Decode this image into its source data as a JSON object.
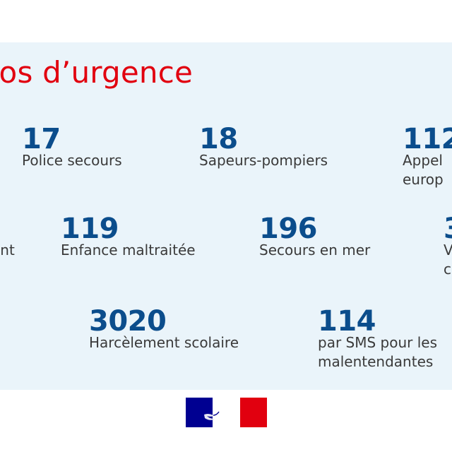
{
  "title": "ros d’urgence",
  "entries": [
    {
      "number": "17",
      "label": "Police secours"
    },
    {
      "number": "18",
      "label": "Sapeurs-pompiers"
    },
    {
      "number": "112",
      "label_line1": "Appel",
      "label_line2": "europ"
    },
    {
      "label": "ent"
    },
    {
      "number": "119",
      "label": "Enfance maltraitée"
    },
    {
      "number": "196",
      "label": "Secours en mer"
    },
    {
      "number": "3",
      "label_line1": "V",
      "label_line2": "c"
    },
    {
      "number": "3020",
      "label": "Harcèlement scolaire"
    },
    {
      "number": "114",
      "label_line1": "par SMS pour les",
      "label_line2": "malentendantes"
    }
  ],
  "colors": {
    "panel_background": "#eaf4fa",
    "title_red": "#e1000f",
    "number_blue": "#0b4d8c",
    "label_gray": "#3a3a3a",
    "flag_blue": "#000091",
    "flag_red": "#e1000f"
  },
  "logo": {
    "icon": "marianne-flag-icon"
  }
}
